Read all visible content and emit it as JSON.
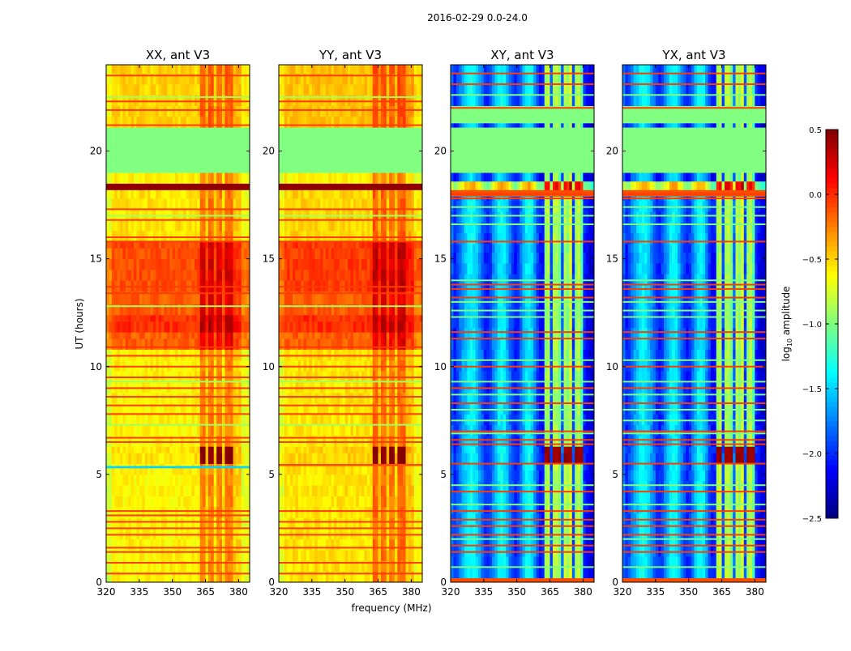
{
  "chart_data": {
    "type": "heatmap",
    "title": "2016-02-29 0.0-24.0",
    "xlabel": "frequency (MHz)",
    "ylabel": "UT (hours)",
    "xlim": [
      320,
      385
    ],
    "ylim": [
      0,
      24
    ],
    "xticks": [
      320,
      335,
      350,
      365,
      380
    ],
    "yticks": [
      0,
      5,
      10,
      15,
      20
    ],
    "grid": false,
    "colormap": "jet",
    "colorbar": {
      "vmin": -2.5,
      "vmax": 0.5,
      "ticks": [
        0.5,
        0.0,
        -0.5,
        -1.0,
        -1.5,
        -2.0,
        -2.5
      ],
      "tick_labels": [
        "0.5",
        "0.0",
        "−0.5",
        "−1.0",
        "−1.5",
        "−2.0",
        "−2.5"
      ],
      "label_parts": [
        "log",
        "10",
        " amplitude"
      ],
      "placement": "right"
    },
    "channel_width_mhz": 1.25,
    "profiles": {
      "copol": [
        -0.15,
        -0.15,
        0,
        0,
        0,
        0,
        0,
        0,
        0,
        0,
        0,
        0,
        0,
        0,
        0,
        0,
        0,
        0,
        0,
        0,
        0,
        0,
        0,
        0,
        0,
        0,
        0,
        0,
        0,
        0,
        0,
        0,
        0,
        0,
        0.35,
        0.35,
        0.1,
        0.35,
        0.35,
        0.05,
        0.3,
        0.3,
        0.05,
        0.35,
        0.35,
        0.35,
        0.1,
        0.1,
        0.1,
        -0.1,
        -0.1,
        -0.1
      ],
      "crosspol": [
        -0.1,
        -0.3,
        -0.2,
        -0.05,
        0.1,
        0.2,
        0.3,
        0.35,
        0.3,
        0.2,
        0.05,
        -0.1,
        -0.25,
        -0.3,
        -0.2,
        0,
        0.15,
        0.3,
        0.35,
        0.3,
        0.15,
        -0.05,
        -0.2,
        -0.3,
        -0.25,
        -0.05,
        0.15,
        0.3,
        0.35,
        0.25,
        0.05,
        -0.2,
        -0.35,
        -0.35,
        0.8,
        0.9,
        -0.2,
        0.85,
        0.9,
        0.7,
        -0.1,
        0.9,
        0.75,
        1.0,
        -0.2,
        0.8,
        0.9,
        0.6,
        -0.3,
        -0.4,
        -0.5,
        -0.5
      ]
    },
    "panels": [
      {
        "title": "XX, ant V3",
        "profile": "copol",
        "rfi_min_offset": 0.25,
        "segments": [
          [
            0,
            5.3,
            -0.6
          ],
          [
            5.3,
            5.4,
            -1.5,
            "f"
          ],
          [
            5.4,
            5.5,
            -0.6
          ],
          [
            5.5,
            6.3,
            -0.55,
            "r",
            0.5
          ],
          [
            6.3,
            10.8,
            -0.6
          ],
          [
            10.8,
            11.6,
            -0.15
          ],
          [
            11.6,
            12.4,
            0.0
          ],
          [
            12.4,
            13.5,
            -0.15
          ],
          [
            13.5,
            15.8,
            -0.1
          ],
          [
            15.8,
            18.2,
            -0.55
          ],
          [
            18.2,
            18.5,
            0.45,
            "f"
          ],
          [
            18.5,
            19.0,
            -0.6
          ],
          [
            19.0,
            21.1,
            -1.0,
            "f"
          ],
          [
            21.1,
            24,
            -0.5
          ]
        ],
        "lines": [
          [
            0.4,
            -0.05
          ],
          [
            0.9,
            -0.05
          ],
          [
            1.4,
            -0.05
          ],
          [
            1.6,
            -0.05
          ],
          [
            2.2,
            -0.05
          ],
          [
            2.5,
            -0.05
          ],
          [
            2.8,
            -0.05
          ],
          [
            3.1,
            -0.05
          ],
          [
            3.3,
            -0.05
          ],
          [
            6.5,
            -0.05
          ],
          [
            6.7,
            -0.05
          ],
          [
            7.8,
            -0.05
          ],
          [
            8.2,
            -0.05
          ],
          [
            8.6,
            -0.05
          ],
          [
            9.0,
            -0.05
          ],
          [
            9.5,
            -0.05
          ],
          [
            10.0,
            -0.05
          ],
          [
            10.5,
            -0.05
          ],
          [
            10.9,
            -0.05
          ],
          [
            13.4,
            -0.05
          ],
          [
            13.7,
            -0.05
          ],
          [
            15.8,
            -0.05
          ],
          [
            16.0,
            -0.05
          ],
          [
            16.8,
            -0.05
          ],
          [
            17.3,
            -0.05
          ],
          [
            21.2,
            -0.05
          ],
          [
            21.9,
            -0.05
          ],
          [
            22.3,
            -0.05
          ],
          [
            23.5,
            -0.05
          ],
          [
            7.3,
            -0.9
          ],
          [
            9.3,
            -0.9
          ],
          [
            12.8,
            -0.9
          ],
          [
            17.0,
            -0.9
          ],
          [
            22.5,
            -0.9
          ]
        ]
      },
      {
        "title": "YY, ant V3",
        "profile": "copol",
        "rfi_min_offset": 0.25,
        "segments": [
          [
            0,
            5.4,
            -0.55
          ],
          [
            5.4,
            5.5,
            -0.1,
            "f"
          ],
          [
            5.5,
            6.3,
            -0.5,
            "r",
            0.5
          ],
          [
            6.3,
            10.8,
            -0.55
          ],
          [
            10.8,
            11.6,
            -0.15
          ],
          [
            11.6,
            12.4,
            0.0
          ],
          [
            12.4,
            13.5,
            -0.15
          ],
          [
            13.5,
            15.8,
            -0.05
          ],
          [
            15.8,
            18.2,
            -0.5
          ],
          [
            18.2,
            18.5,
            0.45,
            "f"
          ],
          [
            18.5,
            19.0,
            -0.6
          ],
          [
            19.0,
            21.1,
            -1.0,
            "f"
          ],
          [
            21.1,
            24,
            -0.45
          ]
        ],
        "lines": [
          [
            0.4,
            -0.05
          ],
          [
            0.9,
            -0.05
          ],
          [
            1.6,
            -0.05
          ],
          [
            2.2,
            -0.05
          ],
          [
            2.5,
            -0.05
          ],
          [
            2.8,
            -0.05
          ],
          [
            3.3,
            -0.05
          ],
          [
            6.5,
            -0.05
          ],
          [
            6.7,
            -0.05
          ],
          [
            7.8,
            -0.05
          ],
          [
            8.2,
            -0.05
          ],
          [
            8.6,
            -0.05
          ],
          [
            9.0,
            -0.05
          ],
          [
            9.5,
            -0.05
          ],
          [
            10.0,
            -0.05
          ],
          [
            10.5,
            -0.05
          ],
          [
            10.9,
            -0.05
          ],
          [
            13.4,
            -0.05
          ],
          [
            13.7,
            -0.05
          ],
          [
            15.8,
            -0.05
          ],
          [
            16.0,
            -0.05
          ],
          [
            16.8,
            -0.05
          ],
          [
            17.3,
            -0.05
          ],
          [
            21.2,
            -0.05
          ],
          [
            21.9,
            -0.05
          ],
          [
            22.3,
            -0.05
          ],
          [
            23.5,
            -0.05
          ],
          [
            7.3,
            -0.9
          ],
          [
            9.3,
            -0.9
          ],
          [
            12.8,
            -0.9
          ],
          [
            17.0,
            -0.9
          ],
          [
            22.5,
            -0.9
          ]
        ]
      },
      {
        "title": "XY, ant V3",
        "profile": "crosspol",
        "rfi_min_offset": 0.5,
        "segments": [
          [
            0,
            0.2,
            -0.1,
            "f"
          ],
          [
            0.2,
            5.5,
            -1.7
          ],
          [
            5.5,
            6.3,
            -1.7,
            "r",
            0.45
          ],
          [
            6.3,
            15.7,
            -1.75
          ],
          [
            15.7,
            17.9,
            -1.7
          ],
          [
            17.9,
            18.2,
            -0.1,
            "f"
          ],
          [
            18.2,
            18.6,
            -0.7
          ],
          [
            18.6,
            19.0,
            -1.8
          ],
          [
            19.0,
            21.1,
            -1.0,
            "f"
          ],
          [
            21.1,
            21.3,
            -1.8
          ],
          [
            21.3,
            22.1,
            -1.0,
            "f"
          ],
          [
            22.1,
            24,
            -1.7
          ]
        ],
        "lines": [
          [
            1.4,
            -0.05
          ],
          [
            1.7,
            -0.05
          ],
          [
            2.2,
            -0.05
          ],
          [
            2.6,
            -0.05
          ],
          [
            2.9,
            -0.05
          ],
          [
            3.3,
            -0.05
          ],
          [
            4.2,
            -0.05
          ],
          [
            5.5,
            -0.05
          ],
          [
            6.4,
            -0.05
          ],
          [
            6.6,
            -0.05
          ],
          [
            7.0,
            -0.05
          ],
          [
            8.3,
            -0.05
          ],
          [
            9.0,
            -0.05
          ],
          [
            10.0,
            -0.05
          ],
          [
            11.3,
            -0.05
          ],
          [
            11.6,
            -0.05
          ],
          [
            13.2,
            -0.05
          ],
          [
            13.6,
            -0.05
          ],
          [
            13.8,
            -0.05
          ],
          [
            15.8,
            -0.05
          ],
          [
            17.8,
            -0.05
          ],
          [
            18.0,
            -0.05
          ],
          [
            22.0,
            -0.05
          ],
          [
            23.1,
            -0.05
          ],
          [
            23.6,
            -0.05
          ],
          [
            0.7,
            -1.0
          ],
          [
            2.0,
            -1.0
          ],
          [
            3.6,
            -1.0
          ],
          [
            4.5,
            -1.0
          ],
          [
            6.9,
            -1.0
          ],
          [
            7.5,
            -1.0
          ],
          [
            8.0,
            -1.0
          ],
          [
            8.7,
            -1.0
          ],
          [
            9.3,
            -1.0
          ],
          [
            10.3,
            -1.0
          ],
          [
            12.3,
            -1.0
          ],
          [
            12.6,
            -1.0
          ],
          [
            13.0,
            -1.0
          ],
          [
            14.0,
            -1.0
          ],
          [
            16.6,
            -1.0
          ],
          [
            17.0,
            -1.0
          ],
          [
            17.4,
            -1.0
          ],
          [
            22.6,
            -1.0
          ]
        ]
      },
      {
        "title": "YX, ant V3",
        "profile": "crosspol",
        "rfi_min_offset": 0.5,
        "segments": [
          [
            0,
            0.2,
            -0.1,
            "f"
          ],
          [
            0.2,
            5.5,
            -1.7
          ],
          [
            5.5,
            6.3,
            -1.7,
            "r",
            0.45
          ],
          [
            6.3,
            15.7,
            -1.75
          ],
          [
            15.7,
            17.9,
            -1.7
          ],
          [
            17.9,
            18.2,
            -0.1,
            "f"
          ],
          [
            18.2,
            18.6,
            -0.7
          ],
          [
            18.6,
            19.0,
            -1.8
          ],
          [
            19.0,
            21.1,
            -1.0,
            "f"
          ],
          [
            21.1,
            21.3,
            -1.8
          ],
          [
            21.3,
            22.1,
            -1.0,
            "f"
          ],
          [
            22.1,
            24,
            -1.7
          ]
        ],
        "lines": [
          [
            1.4,
            -0.05
          ],
          [
            1.7,
            -0.05
          ],
          [
            2.2,
            -0.05
          ],
          [
            2.6,
            -0.05
          ],
          [
            2.9,
            -0.05
          ],
          [
            3.3,
            -0.05
          ],
          [
            4.2,
            -0.05
          ],
          [
            5.5,
            -0.05
          ],
          [
            6.4,
            -0.05
          ],
          [
            6.6,
            -0.05
          ],
          [
            7.0,
            -0.05
          ],
          [
            8.3,
            -0.05
          ],
          [
            9.0,
            -0.05
          ],
          [
            10.0,
            -0.05
          ],
          [
            11.3,
            -0.05
          ],
          [
            11.6,
            -0.05
          ],
          [
            13.2,
            -0.05
          ],
          [
            13.6,
            -0.05
          ],
          [
            13.8,
            -0.05
          ],
          [
            15.8,
            -0.05
          ],
          [
            17.8,
            -0.05
          ],
          [
            18.0,
            -0.05
          ],
          [
            22.0,
            -0.05
          ],
          [
            23.1,
            -0.05
          ],
          [
            23.6,
            -0.05
          ],
          [
            0.7,
            -1.0
          ],
          [
            2.0,
            -1.0
          ],
          [
            3.6,
            -1.0
          ],
          [
            4.5,
            -1.0
          ],
          [
            6.9,
            -1.0
          ],
          [
            7.5,
            -1.0
          ],
          [
            8.0,
            -1.0
          ],
          [
            8.7,
            -1.0
          ],
          [
            9.3,
            -1.0
          ],
          [
            10.3,
            -1.0
          ],
          [
            12.3,
            -1.0
          ],
          [
            12.6,
            -1.0
          ],
          [
            13.0,
            -1.0
          ],
          [
            14.0,
            -1.0
          ],
          [
            16.6,
            -1.0
          ],
          [
            17.0,
            -1.0
          ],
          [
            17.4,
            -1.0
          ],
          [
            22.6,
            -1.0
          ]
        ]
      }
    ]
  }
}
